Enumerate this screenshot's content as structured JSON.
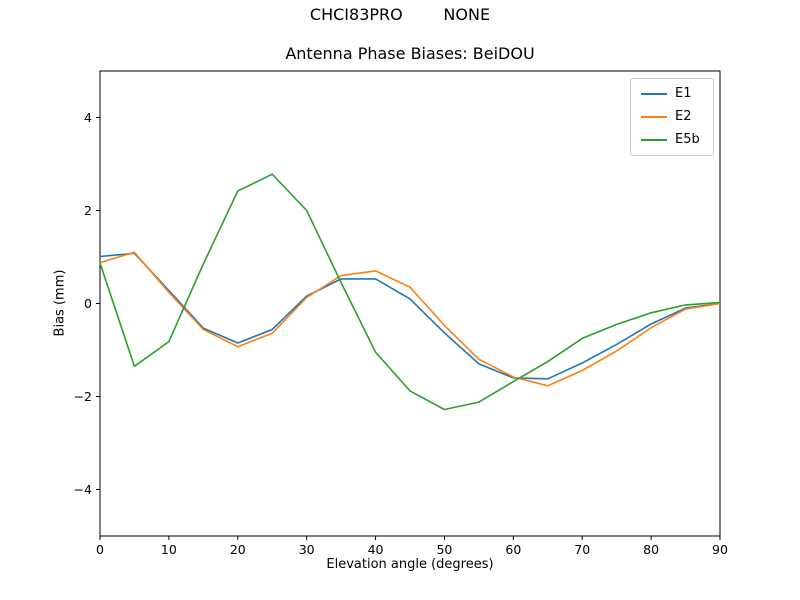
{
  "suptitle": "CHCI83PRO        NONE",
  "chart_data": {
    "type": "line",
    "title": "Antenna Phase Biases: BeiDOU",
    "xlabel": "Elevation angle (degrees)",
    "ylabel": "Bias (mm)",
    "xlim": [
      0,
      90
    ],
    "ylim": [
      -5,
      5
    ],
    "x_ticks": [
      0,
      10,
      20,
      30,
      40,
      50,
      60,
      70,
      80,
      90
    ],
    "x_tick_labels": [
      "0",
      "10",
      "20",
      "30",
      "40",
      "50",
      "60",
      "70",
      "80",
      "90"
    ],
    "y_ticks": [
      -4,
      -2,
      0,
      2,
      4
    ],
    "y_tick_labels": [
      "−4",
      "−2",
      "0",
      "2",
      "4"
    ],
    "grid": false,
    "legend_position": "upper right",
    "x": [
      0,
      5,
      10,
      15,
      20,
      25,
      30,
      35,
      40,
      45,
      50,
      55,
      60,
      65,
      70,
      75,
      80,
      85,
      90
    ],
    "series": [
      {
        "name": "E1",
        "color": "#1f77b4",
        "values": [
          1.01,
          1.08,
          0.28,
          -0.53,
          -0.85,
          -0.56,
          0.16,
          0.53,
          0.53,
          0.1,
          -0.63,
          -1.3,
          -1.6,
          -1.62,
          -1.28,
          -0.88,
          -0.44,
          -0.1,
          0.0
        ]
      },
      {
        "name": "E2",
        "color": "#ff7f0e",
        "values": [
          0.88,
          1.1,
          0.24,
          -0.56,
          -0.93,
          -0.64,
          0.13,
          0.6,
          0.7,
          0.35,
          -0.47,
          -1.2,
          -1.58,
          -1.77,
          -1.44,
          -1.02,
          -0.52,
          -0.12,
          0.0
        ]
      },
      {
        "name": "E5b",
        "color": "#2ca02c",
        "values": [
          0.87,
          -1.35,
          -0.82,
          0.85,
          2.42,
          2.78,
          2.0,
          0.45,
          -1.05,
          -1.88,
          -2.28,
          -2.12,
          -1.68,
          -1.25,
          -0.75,
          -0.45,
          -0.2,
          -0.03,
          0.02
        ]
      }
    ]
  }
}
